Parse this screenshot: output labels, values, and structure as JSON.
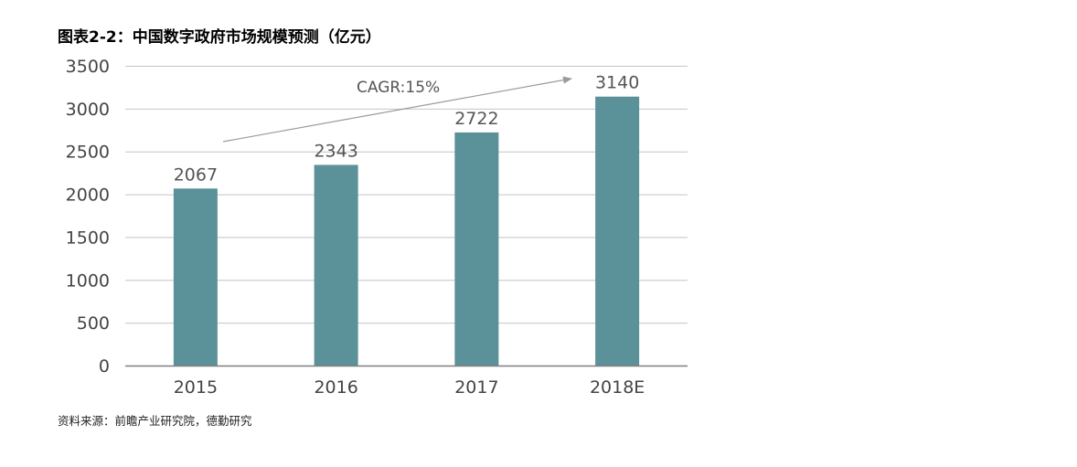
{
  "chart_data": {
    "type": "bar",
    "title": "图表2-2：中国数字政府市场规模预测（亿元）",
    "categories": [
      "2015",
      "2016",
      "2017",
      "2018E"
    ],
    "values": [
      2067,
      2343,
      2722,
      3140
    ],
    "data_labels": [
      "2067",
      "2343",
      "2722",
      "3140"
    ],
    "ylim": [
      0,
      3500
    ],
    "yticks": [
      0,
      500,
      1000,
      1500,
      2000,
      2500,
      3000,
      3500
    ],
    "xlabel": "",
    "ylabel": "",
    "grid": true,
    "bar_color": "#5b9198",
    "annotation": "CAGR:15%",
    "source": "资料来源：前瞻产业研究院，德勤研究"
  }
}
